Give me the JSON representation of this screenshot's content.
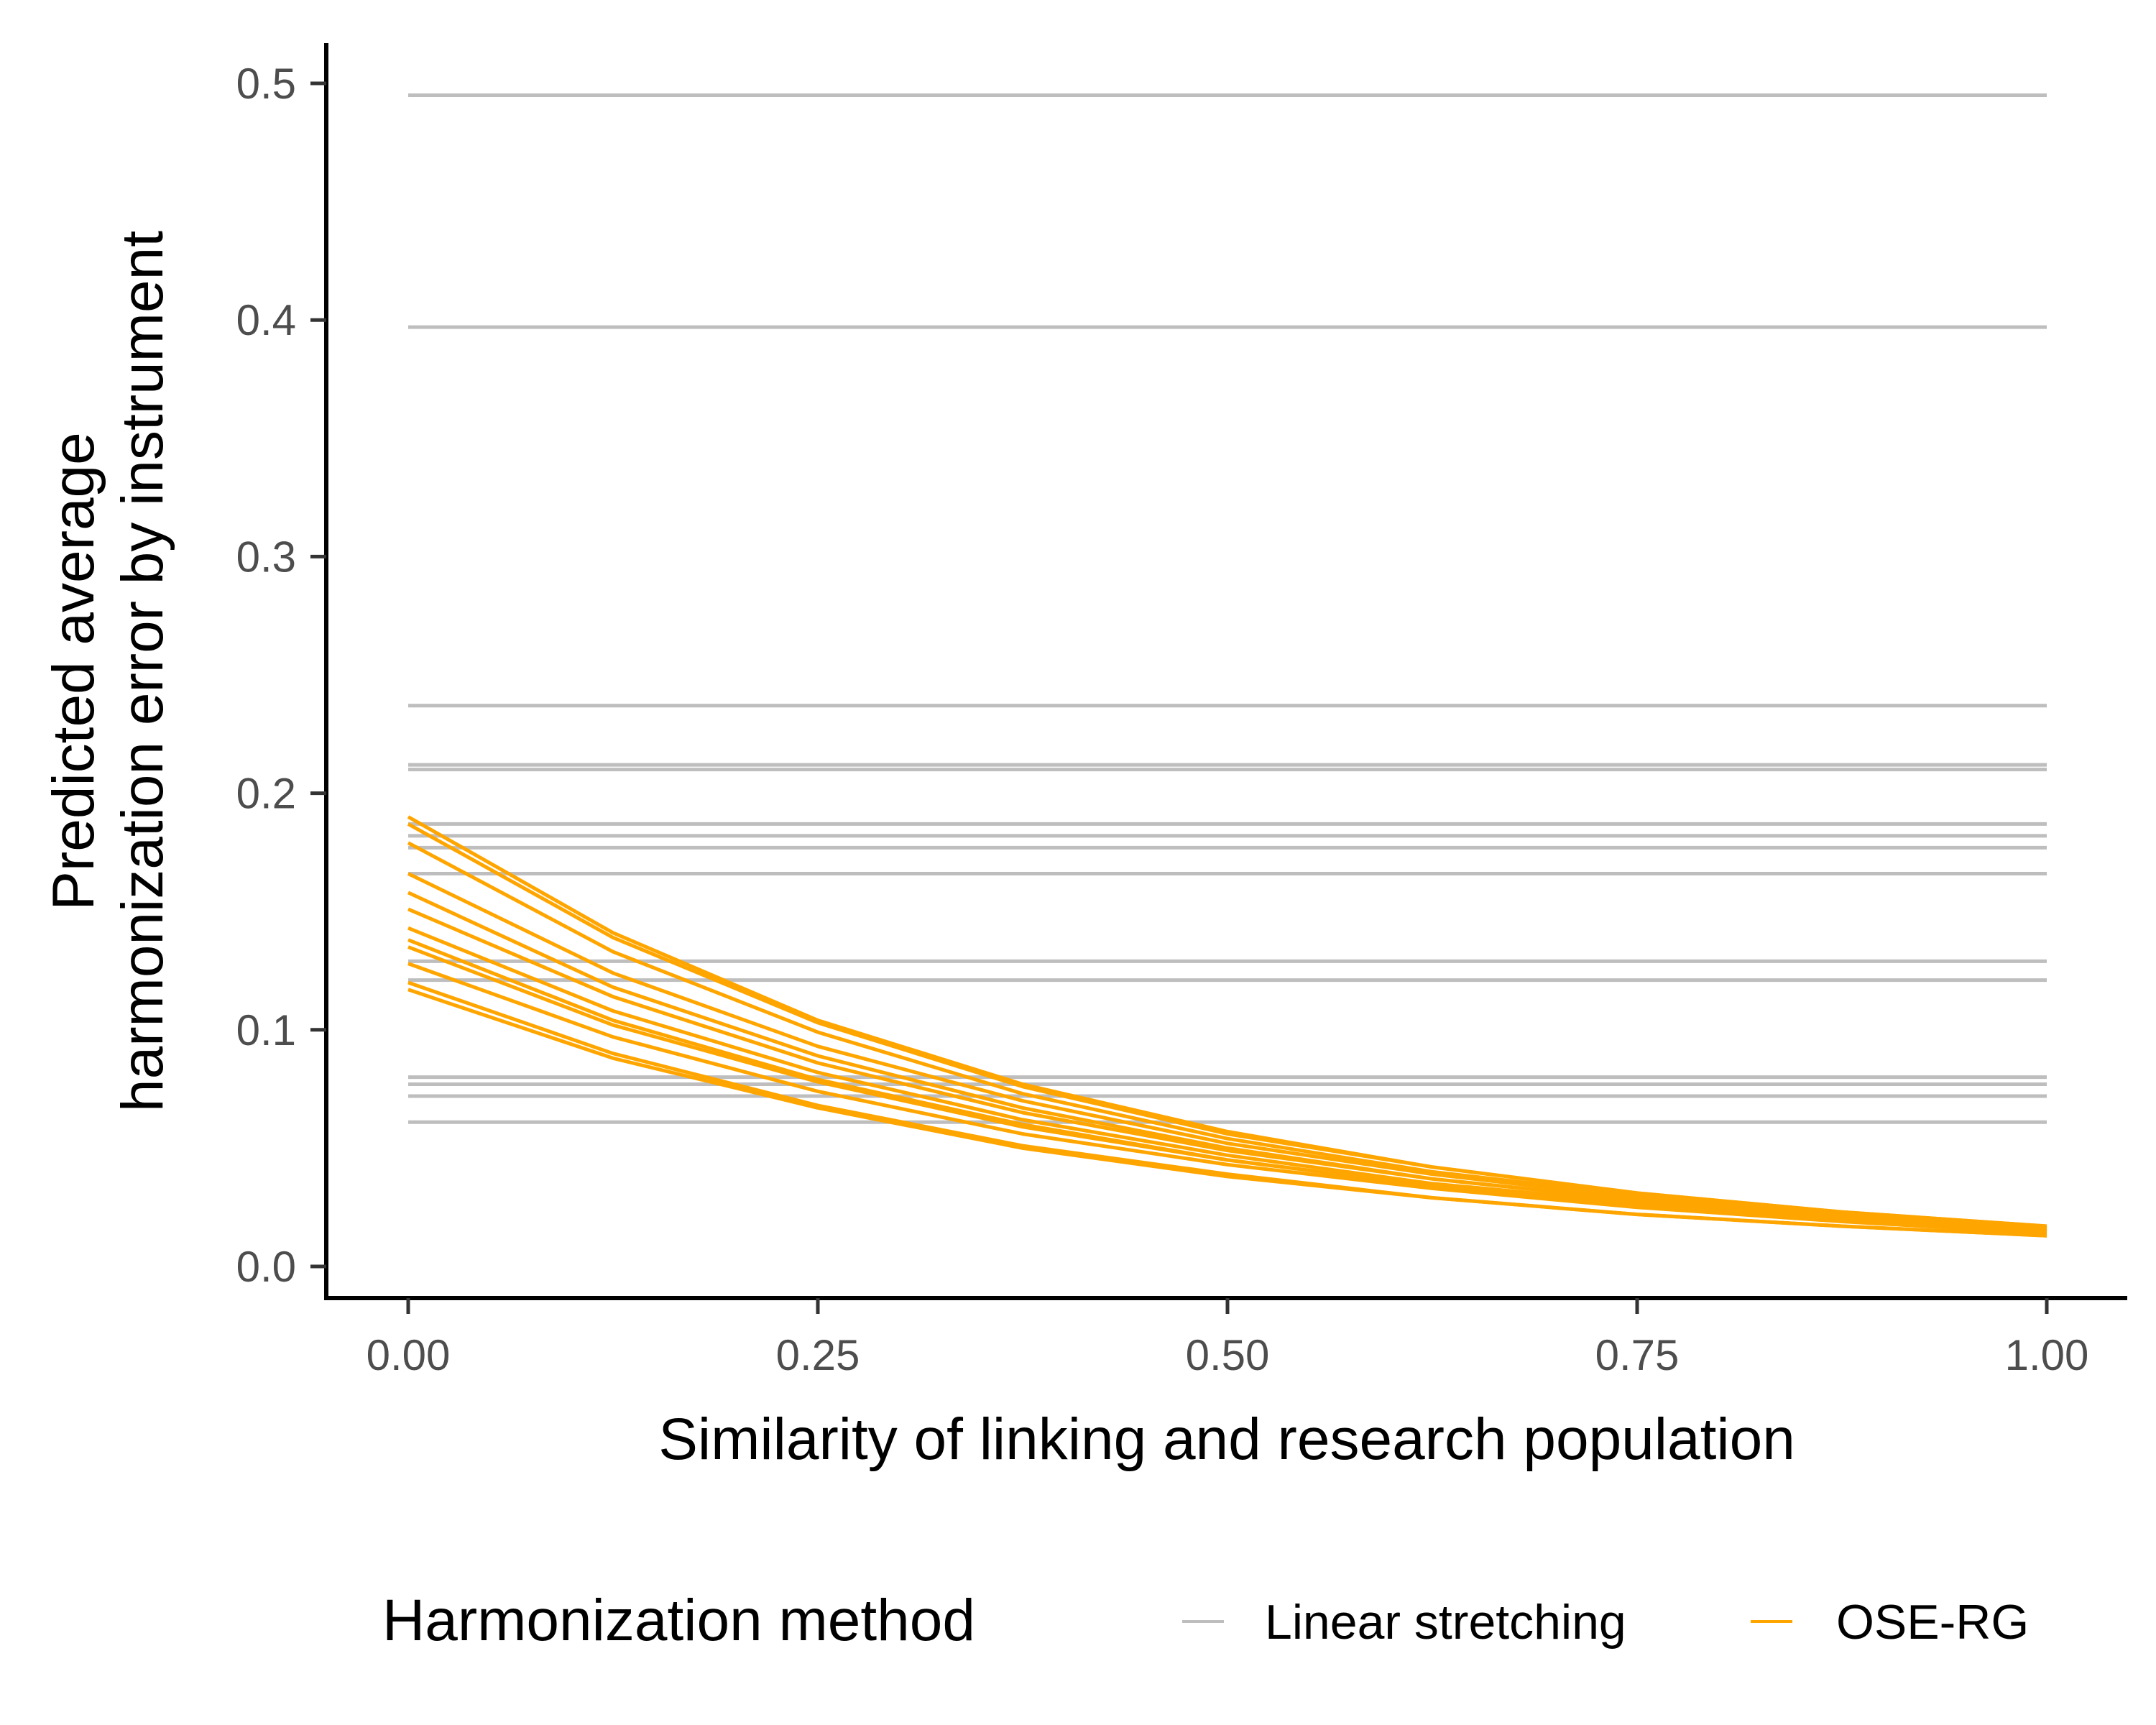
{
  "chart_data": {
    "type": "line",
    "xlabel": "Similarity of linking and research population",
    "ylabel_lines": [
      "Predicted average",
      "harmonization error by instrument"
    ],
    "xlim": [
      0,
      1
    ],
    "ylim": [
      0,
      0.5
    ],
    "x_ticks": [
      0,
      0.25,
      0.5,
      0.75,
      1
    ],
    "x_tick_labels": [
      "0.00",
      "0.25",
      "0.50",
      "0.75",
      "1.00"
    ],
    "y_ticks": [
      0,
      0.1,
      0.2,
      0.3,
      0.4,
      0.5
    ],
    "y_tick_labels": [
      "0.0",
      "0.1",
      "0.2",
      "0.3",
      "0.4",
      "0.5"
    ],
    "grid": false,
    "legend": {
      "title": "Harmonization method",
      "position": "bottom",
      "entries": [
        {
          "label": "Linear stretching",
          "color": "#bebebe"
        },
        {
          "label": "OSE-RG",
          "color": "#ffa500"
        }
      ]
    },
    "linear_stretching_levels": [
      0.495,
      0.397,
      0.237,
      0.212,
      0.21,
      0.187,
      0.182,
      0.177,
      0.166,
      0.129,
      0.121,
      0.08,
      0.077,
      0.072,
      0.061
    ],
    "ose_rg_x": [
      0,
      0.125,
      0.25,
      0.375,
      0.5,
      0.625,
      0.75,
      0.875,
      1
    ],
    "ose_rg_series": [
      {
        "values": [
          0.19,
          0.141,
          0.104,
          0.077,
          0.057,
          0.042,
          0.031,
          0.023,
          0.017
        ]
      },
      {
        "values": [
          0.187,
          0.139,
          0.103,
          0.076,
          0.056,
          0.042,
          0.031,
          0.023,
          0.017
        ]
      },
      {
        "values": [
          0.179,
          0.133,
          0.099,
          0.073,
          0.054,
          0.04,
          0.03,
          0.022,
          0.016
        ]
      },
      {
        "values": [
          0.166,
          0.124,
          0.093,
          0.07,
          0.052,
          0.039,
          0.029,
          0.022,
          0.016
        ]
      },
      {
        "values": [
          0.158,
          0.118,
          0.089,
          0.067,
          0.05,
          0.037,
          0.028,
          0.021,
          0.016
        ]
      },
      {
        "values": [
          0.151,
          0.114,
          0.086,
          0.065,
          0.049,
          0.037,
          0.028,
          0.021,
          0.016
        ]
      },
      {
        "values": [
          0.143,
          0.108,
          0.082,
          0.062,
          0.047,
          0.035,
          0.027,
          0.02,
          0.015
        ]
      },
      {
        "values": [
          0.138,
          0.104,
          0.079,
          0.06,
          0.045,
          0.034,
          0.026,
          0.02,
          0.015
        ]
      },
      {
        "values": [
          0.135,
          0.102,
          0.078,
          0.059,
          0.045,
          0.034,
          0.026,
          0.02,
          0.015
        ]
      },
      {
        "values": [
          0.128,
          0.097,
          0.074,
          0.056,
          0.043,
          0.033,
          0.025,
          0.019,
          0.014
        ]
      },
      {
        "values": [
          0.12,
          0.09,
          0.068,
          0.051,
          0.039,
          0.029,
          0.022,
          0.017,
          0.013
        ]
      },
      {
        "values": [
          0.117,
          0.088,
          0.067,
          0.05,
          0.038,
          0.029,
          0.022,
          0.017,
          0.013
        ]
      }
    ]
  }
}
